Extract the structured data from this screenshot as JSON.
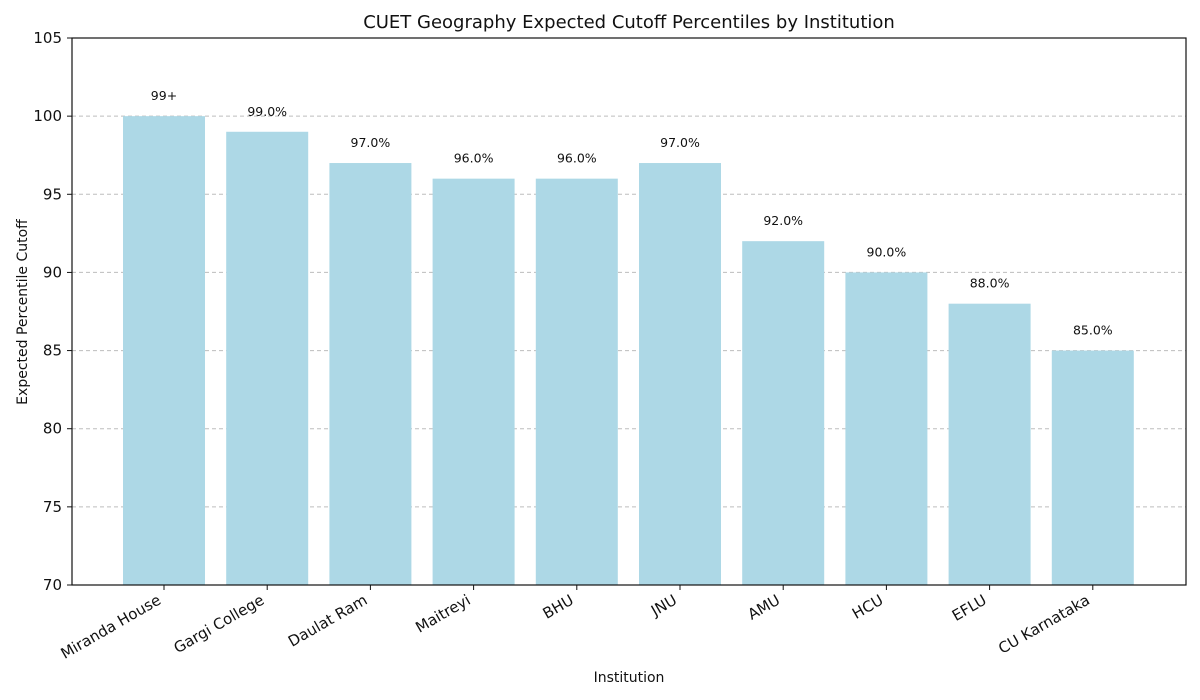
{
  "chart_data": {
    "type": "bar",
    "title": "CUET Geography Expected Cutoff Percentiles by Institution",
    "xlabel": "Institution",
    "ylabel": "Expected Percentile Cutoff",
    "ylim": [
      70,
      105
    ],
    "yticks": [
      70,
      75,
      80,
      85,
      90,
      95,
      100,
      105
    ],
    "grid": "y-dashed",
    "bar_color": "#add8e6",
    "categories": [
      "Miranda House",
      "Gargi College",
      "Daulat Ram",
      "Maitreyi",
      "BHU",
      "JNU",
      "AMU",
      "HCU",
      "EFLU",
      "CU Karnataka"
    ],
    "values": [
      100,
      99,
      97,
      96,
      96,
      97,
      92,
      90,
      88,
      85
    ],
    "data_labels": [
      "99+",
      "99.0%",
      "97.0%",
      "96.0%",
      "96.0%",
      "97.0%",
      "92.0%",
      "90.0%",
      "88.0%",
      "85.0%"
    ]
  }
}
